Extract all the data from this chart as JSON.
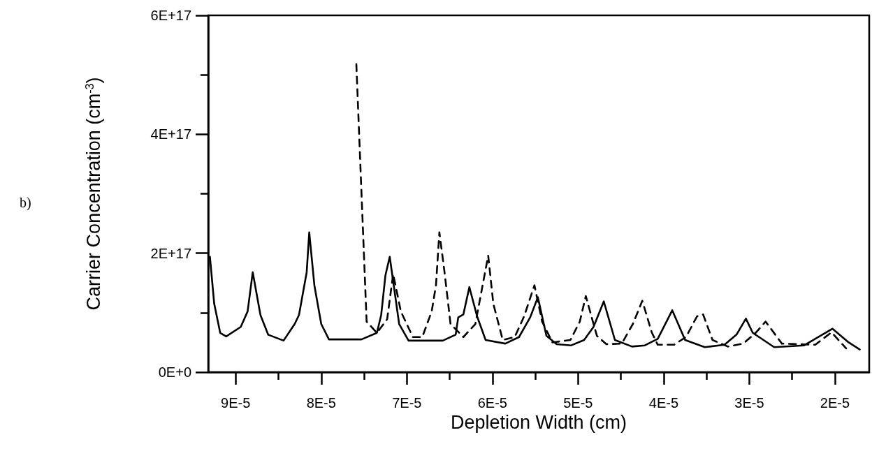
{
  "chart_data": {
    "type": "line",
    "xlabel": "Depletion Width (cm)",
    "ylabel": "Carrier Concentration (cm$^{-3}$)",
    "annotations": [
      "b)"
    ],
    "xlim": [
      9.32e-05,
      1.6e-05
    ],
    "xticks": [
      {
        "value": 9e-05,
        "label": "9E-5"
      },
      {
        "value": 8.5e-05,
        "label": null
      },
      {
        "value": 8e-05,
        "label": "8E-5"
      },
      {
        "value": 7.5e-05,
        "label": null
      },
      {
        "value": 7e-05,
        "label": "7E-5"
      },
      {
        "value": 6.5e-05,
        "label": null
      },
      {
        "value": 6e-05,
        "label": "6E-5"
      },
      {
        "value": 5.5e-05,
        "label": null
      },
      {
        "value": 5e-05,
        "label": "5E-5"
      },
      {
        "value": 4.5e-05,
        "label": null
      },
      {
        "value": 4e-05,
        "label": "4E-5"
      },
      {
        "value": 3.5e-05,
        "label": null
      },
      {
        "value": 3e-05,
        "label": "3E-5"
      },
      {
        "value": 2.5e-05,
        "label": null
      },
      {
        "value": 2e-05,
        "label": "2E-5"
      }
    ],
    "ylim": [
      0,
      6e+17
    ],
    "yticks": [
      {
        "value": 0,
        "label": "0E+0"
      },
      {
        "value": 1e+17,
        "label": null
      },
      {
        "value": 2e+17,
        "label": "2E+17"
      },
      {
        "value": 3e+17,
        "label": null
      },
      {
        "value": 4e+17,
        "label": "4E+17"
      },
      {
        "value": 5e+17,
        "label": null
      },
      {
        "value": 6e+17,
        "label": "6E+17"
      }
    ],
    "grid": false,
    "marker": "none",
    "series": [
      {
        "color": "#000000",
        "line_style": "solid",
        "x": [
          9.3e-05,
          9.25e-05,
          9.18e-05,
          9.11e-05,
          8.94e-05,
          8.86e-05,
          8.8e-05,
          8.71e-05,
          8.62e-05,
          8.44e-05,
          8.31e-05,
          8.26e-05,
          8.17e-05,
          8.14e-05,
          8.08e-05,
          8e-05,
          7.91e-05,
          7.53e-05,
          7.35e-05,
          7.3e-05,
          7.25e-05,
          7.2e-05,
          7.09e-05,
          6.98e-05,
          6.58e-05,
          6.43e-05,
          6.4e-05,
          6.34e-05,
          6.27e-05,
          6.18e-05,
          6.08e-05,
          5.85e-05,
          5.69e-05,
          5.56e-05,
          5.47e-05,
          5.37e-05,
          5.25e-05,
          5.08e-05,
          4.93e-05,
          4.82e-05,
          4.7e-05,
          4.57e-05,
          4.37e-05,
          4.22e-05,
          4.07e-05,
          3.9e-05,
          3.75e-05,
          3.52e-05,
          3.29e-05,
          3.15e-05,
          3.04e-05,
          2.96e-05,
          2.71e-05,
          2.36e-05,
          2.03e-05,
          1.84e-05,
          1.71e-05
        ],
        "values": [
          1.94e+17,
          1.15e+17,
          6.6e+16,
          6e+16,
          7.6e+16,
          1.02e+17,
          1.68e+17,
          9.6e+16,
          6.3e+16,
          5.3e+16,
          8.1e+16,
          9.6e+16,
          1.68e+17,
          2.35e+17,
          1.46e+17,
          8.1e+16,
          5.5e+16,
          5.5e+16,
          6.6e+16,
          9.6e+16,
          1.63e+17,
          1.94e+17,
          8.1e+16,
          5.3e+16,
          5.3e+16,
          6.3e+16,
          9.2e+16,
          9.7e+16,
          1.43e+17,
          9.4e+16,
          5.4e+16,
          4.8e+16,
          5.9e+16,
          9.2e+16,
          1.26e+17,
          6.1e+16,
          4.7e+16,
          4.5e+16,
          5.4e+16,
          7.6e+16,
          1.19e+17,
          5.4e+16,
          4.3e+16,
          4.5e+16,
          5.6e+16,
          1.04e+17,
          5.4e+16,
          4.2e+16,
          4.6e+16,
          6.3e+16,
          9e+16,
          6.6e+16,
          4.2e+16,
          4.5e+16,
          7.3e+16,
          5e+16,
          3.8e+16
        ]
      },
      {
        "color": "#000000",
        "line_style": "dashed",
        "x": [
          7.59e-05,
          7.47e-05,
          7.35e-05,
          7.23e-05,
          7.16e-05,
          7.07e-05,
          6.93e-05,
          6.82e-05,
          6.71e-05,
          6.66e-05,
          6.62e-05,
          6.56e-05,
          6.49e-05,
          6.34e-05,
          6.2e-05,
          6.11e-05,
          6.05e-05,
          5.99e-05,
          5.88e-05,
          5.74e-05,
          5.63e-05,
          5.51e-05,
          5.42e-05,
          5.3e-05,
          5.09e-05,
          4.98e-05,
          4.91e-05,
          4.82e-05,
          4.78e-05,
          4.67e-05,
          4.49e-05,
          4.36e-05,
          4.25e-05,
          4.14e-05,
          4.07e-05,
          3.88e-05,
          3.74e-05,
          3.61e-05,
          3.54e-05,
          3.43e-05,
          3.25e-05,
          3.07e-05,
          2.92e-05,
          2.81e-05,
          2.62e-05,
          2.23e-05,
          2.04e-05,
          1.87e-05
        ],
        "values": [
          5.18e+17,
          8.5e+16,
          6.6e+16,
          8.9e+16,
          1.65e+17,
          1.02e+17,
          5.9e+16,
          5.9e+16,
          1.02e+17,
          1.46e+17,
          2.35e+17,
          1.68e+17,
          8.1e+16,
          5.9e+16,
          8.1e+16,
          1.5e+17,
          1.96e+17,
          1.15e+17,
          5.4e+16,
          5.9e+16,
          9.4e+16,
          1.46e+17,
          8.5e+16,
          5e+16,
          5.4e+16,
          8.5e+16,
          1.28e+17,
          8.1e+16,
          6.1e+16,
          4.7e+16,
          4.8e+16,
          8.1e+16,
          1.2e+17,
          6.7e+16,
          4.6e+16,
          4.6e+16,
          5.9e+16,
          9.4e+16,
          9.7e+16,
          5.4e+16,
          4.3e+16,
          4.8e+16,
          6.7e+16,
          8.5e+16,
          4.8e+16,
          4.6e+16,
          6.7e+16,
          4e+16
        ]
      }
    ]
  }
}
